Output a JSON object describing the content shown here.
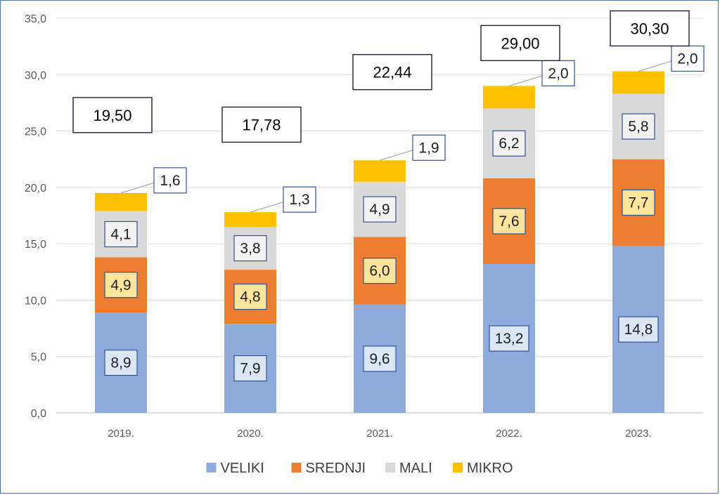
{
  "chart_data": {
    "type": "bar",
    "stacked": true,
    "categories": [
      "2019.",
      "2020.",
      "2021.",
      "2022.",
      "2023."
    ],
    "series": [
      {
        "name": "VELIKI",
        "values": [
          8.9,
          7.9,
          9.6,
          13.2,
          14.8
        ],
        "labels": [
          "8,9",
          "7,9",
          "9,6",
          "13,2",
          "14,8"
        ],
        "color": "#8faadc",
        "label_fill": "#dbe5f3"
      },
      {
        "name": "SREDNJI",
        "values": [
          4.9,
          4.8,
          6.0,
          7.6,
          7.7
        ],
        "labels": [
          "4,9",
          "4,8",
          "6,0",
          "7,6",
          "7,7"
        ],
        "color": "#ed7d31",
        "label_fill": "#fde49b"
      },
      {
        "name": "MALI",
        "values": [
          4.1,
          3.8,
          4.9,
          6.2,
          5.8
        ],
        "labels": [
          "4,1",
          "3,8",
          "4,9",
          "6,2",
          "5,8"
        ],
        "color": "#d9d9d9",
        "label_fill": "#f2f2f2"
      },
      {
        "name": "MIKRO",
        "values": [
          1.6,
          1.3,
          1.9,
          2.0,
          2.0
        ],
        "labels": [
          "1,6",
          "1,3",
          "1,9",
          "2,0",
          "2,0"
        ],
        "color": "#ffc000",
        "label_fill": "#ffffff"
      }
    ],
    "totals": [
      19.5,
      17.78,
      22.44,
      29.0,
      30.3
    ],
    "total_labels": [
      "19,50",
      "17,78",
      "22,44",
      "29,00",
      "30,30"
    ],
    "ylim": [
      0,
      35
    ],
    "yticks": [
      0,
      5,
      10,
      15,
      20,
      25,
      30,
      35
    ],
    "ytick_labels": [
      "0,0",
      "5,0",
      "10,0",
      "15,0",
      "20,0",
      "25,0",
      "30,0",
      "35,0"
    ],
    "grid": true,
    "legend_position": "bottom",
    "title": "",
    "xlabel": "",
    "ylabel": ""
  }
}
